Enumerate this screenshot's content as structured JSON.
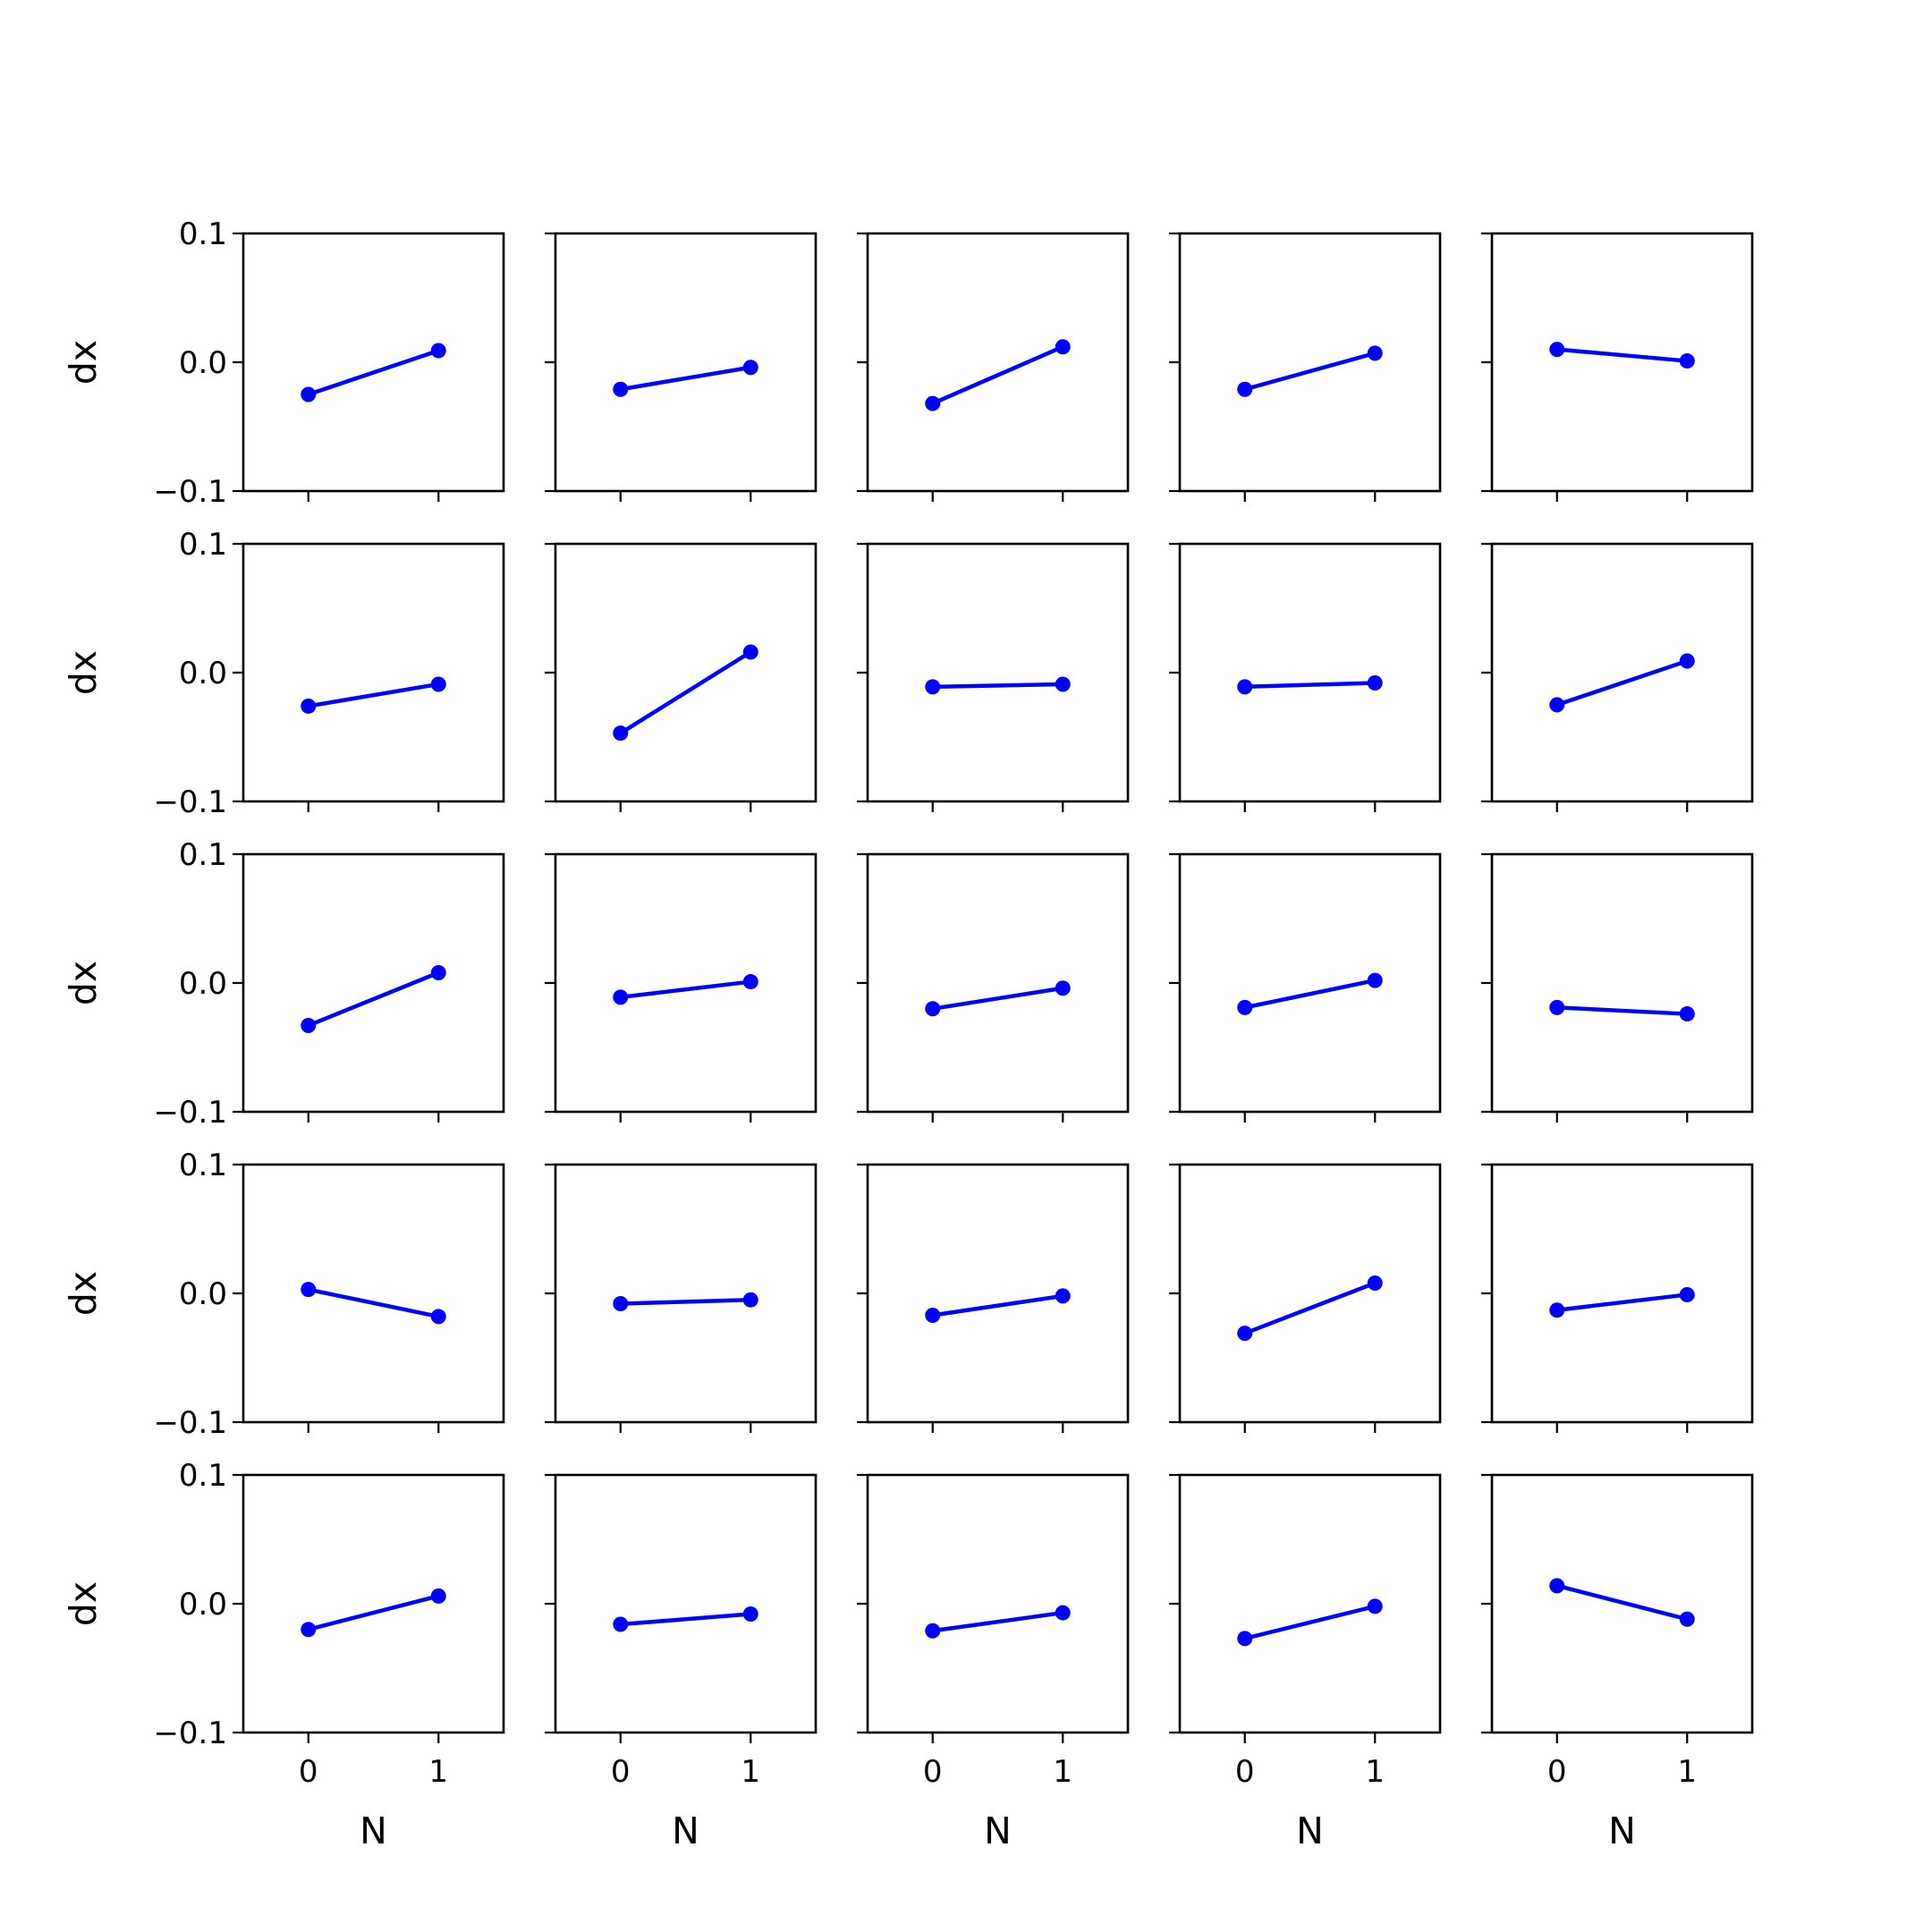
{
  "chart_data": {
    "type": "line",
    "layout": {
      "rows": 5,
      "cols": 5
    },
    "xlabel": "N",
    "ylabel": "dx",
    "xticks": [
      0,
      1
    ],
    "xlim": [
      -0.5,
      1.5
    ],
    "ylim": [
      -0.1,
      0.1
    ],
    "yticks": [
      -0.1,
      0.0,
      0.1
    ],
    "ytick_labels": [
      "−0.1",
      "0.0",
      "0.1"
    ],
    "grid": false,
    "legend": "none",
    "series_color": "#0000ff",
    "panels": [
      {
        "x": [
          0,
          1
        ],
        "y": [
          -0.025,
          0.009
        ]
      },
      {
        "x": [
          0,
          1
        ],
        "y": [
          -0.021,
          -0.004
        ]
      },
      {
        "x": [
          0,
          1
        ],
        "y": [
          -0.032,
          0.012
        ]
      },
      {
        "x": [
          0,
          1
        ],
        "y": [
          -0.021,
          0.007
        ]
      },
      {
        "x": [
          0,
          1
        ],
        "y": [
          0.01,
          0.001
        ]
      },
      {
        "x": [
          0,
          1
        ],
        "y": [
          -0.026,
          -0.009
        ]
      },
      {
        "x": [
          0,
          1
        ],
        "y": [
          -0.047,
          0.016
        ]
      },
      {
        "x": [
          0,
          1
        ],
        "y": [
          -0.011,
          -0.009
        ]
      },
      {
        "x": [
          0,
          1
        ],
        "y": [
          -0.011,
          -0.008
        ]
      },
      {
        "x": [
          0,
          1
        ],
        "y": [
          -0.025,
          0.009
        ]
      },
      {
        "x": [
          0,
          1
        ],
        "y": [
          -0.033,
          0.008
        ]
      },
      {
        "x": [
          0,
          1
        ],
        "y": [
          -0.011,
          0.001
        ]
      },
      {
        "x": [
          0,
          1
        ],
        "y": [
          -0.02,
          -0.004
        ]
      },
      {
        "x": [
          0,
          1
        ],
        "y": [
          -0.019,
          0.002
        ]
      },
      {
        "x": [
          0,
          1
        ],
        "y": [
          -0.019,
          -0.024
        ]
      },
      {
        "x": [
          0,
          1
        ],
        "y": [
          0.003,
          -0.018
        ]
      },
      {
        "x": [
          0,
          1
        ],
        "y": [
          -0.008,
          -0.005
        ]
      },
      {
        "x": [
          0,
          1
        ],
        "y": [
          -0.017,
          -0.002
        ]
      },
      {
        "x": [
          0,
          1
        ],
        "y": [
          -0.031,
          0.008
        ]
      },
      {
        "x": [
          0,
          1
        ],
        "y": [
          -0.013,
          -0.001
        ]
      },
      {
        "x": [
          0,
          1
        ],
        "y": [
          -0.02,
          0.006
        ]
      },
      {
        "x": [
          0,
          1
        ],
        "y": [
          -0.016,
          -0.008
        ]
      },
      {
        "x": [
          0,
          1
        ],
        "y": [
          -0.021,
          -0.007
        ]
      },
      {
        "x": [
          0,
          1
        ],
        "y": [
          -0.027,
          -0.002
        ]
      },
      {
        "x": [
          0,
          1
        ],
        "y": [
          0.014,
          -0.012
        ]
      }
    ]
  }
}
